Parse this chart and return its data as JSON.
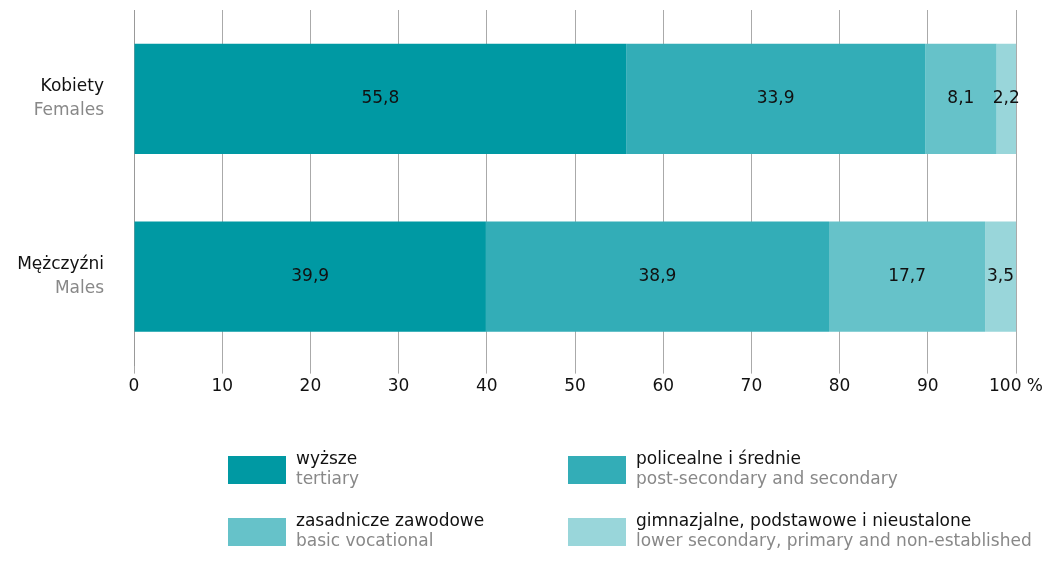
{
  "chart_data": {
    "type": "bar",
    "orientation": "horizontal",
    "stacked": true,
    "categories": [
      "Kobiety\nFemales",
      "Mężczyźni\nMales"
    ],
    "series": [
      {
        "name": "wyższe\ntertiary",
        "color": "#0099a3",
        "values": [
          55.8,
          39.9
        ],
        "value_labels": [
          "55,8",
          "39,9"
        ]
      },
      {
        "name": "policealne i średnie\npost-secondary and secondary",
        "color": "#33adb7",
        "values": [
          33.9,
          38.9
        ],
        "value_labels": [
          "33,9",
          "38,9"
        ]
      },
      {
        "name": "zasadnicze zawodowe\nbasic vocational",
        "color": "#66c2c9",
        "values": [
          8.1,
          17.7
        ],
        "value_labels": [
          "8,1",
          "17,7"
        ]
      },
      {
        "name": "gimnazjalne, podstawowe i nieustalone\nlower secondary, primary and non-established",
        "color": "#99d6da",
        "values": [
          2.2,
          3.5
        ],
        "value_labels": [
          "2,2",
          "3,5"
        ]
      }
    ],
    "xlim": [
      0,
      100
    ],
    "xticks": [
      0,
      10,
      20,
      30,
      40,
      50,
      60,
      70,
      80,
      90,
      {
        "value": 100,
        "label": "100 %"
      }
    ],
    "grid": "x",
    "legend": "bottom"
  }
}
